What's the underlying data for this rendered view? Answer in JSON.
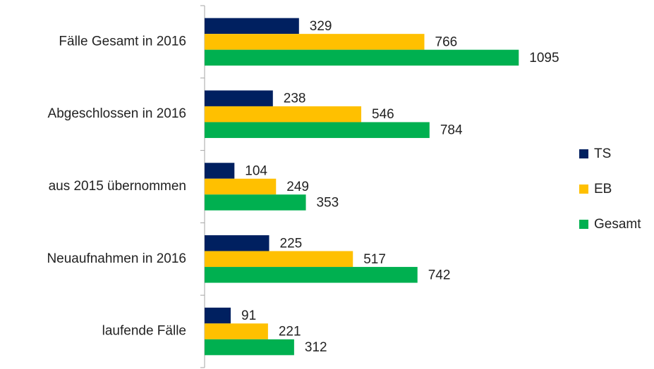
{
  "chart_data": {
    "type": "bar",
    "orientation": "horizontal",
    "categories": [
      "Fälle Gesamt in 2016",
      "Abgeschlossen in 2016",
      "aus 2015 übernommen",
      "Neuaufnahmen in 2016",
      "laufende Fälle"
    ],
    "series": [
      {
        "name": "TS",
        "color": "#002060",
        "values": [
          329,
          238,
          104,
          225,
          91
        ]
      },
      {
        "name": "EB",
        "color": "#ffc000",
        "values": [
          766,
          546,
          249,
          517,
          221
        ]
      },
      {
        "name": "Gesamt",
        "color": "#00b050",
        "values": [
          1095,
          784,
          353,
          742,
          312
        ]
      }
    ],
    "xlim": [
      0,
      1200
    ],
    "legend": "right"
  }
}
